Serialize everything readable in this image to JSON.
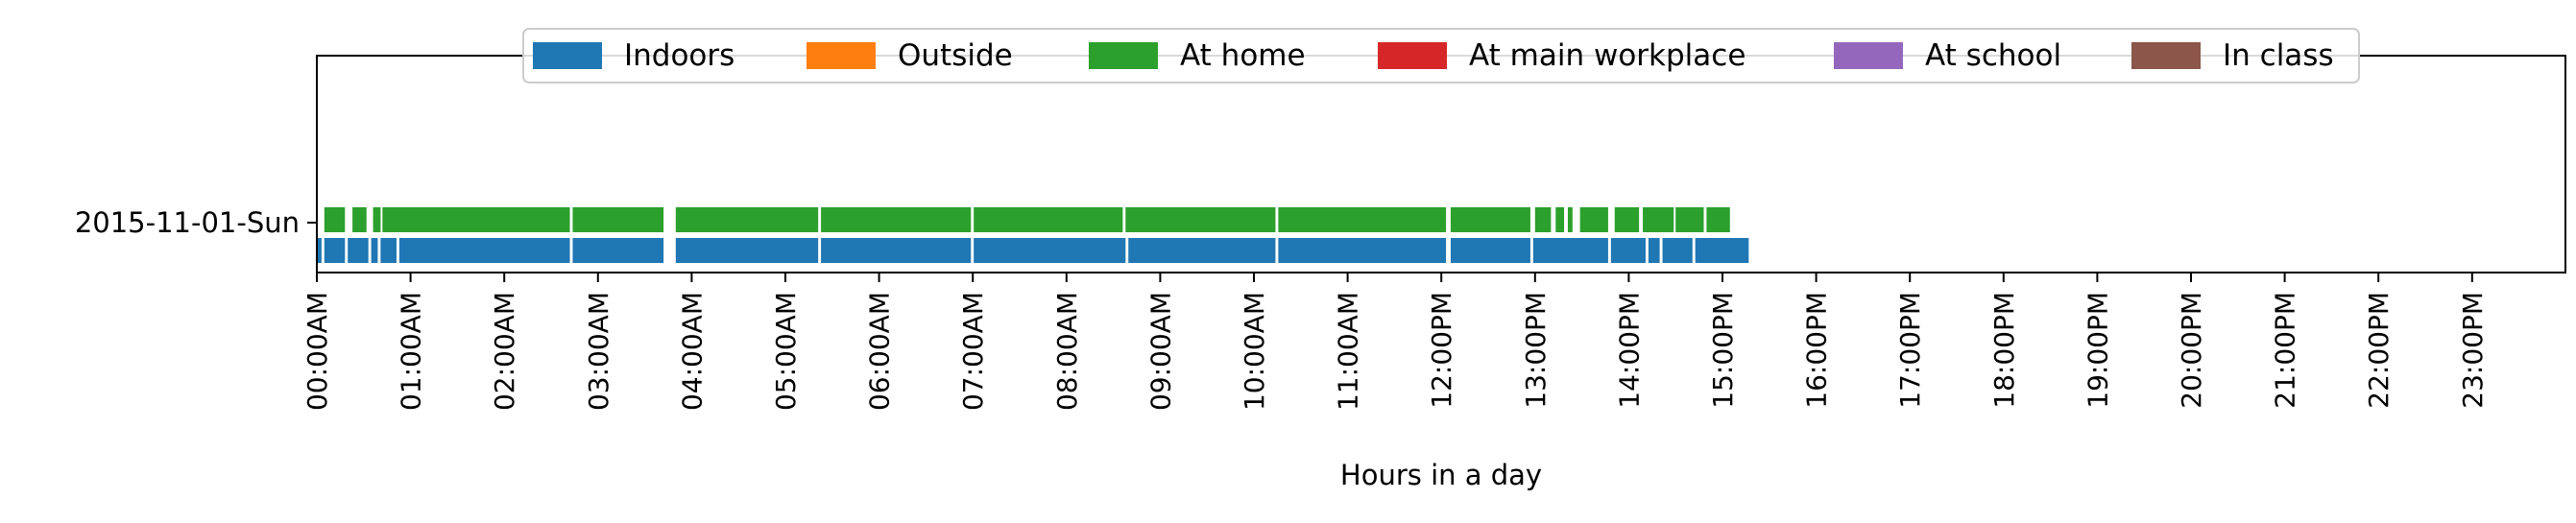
{
  "chart_data": {
    "type": "bar",
    "subtype": "broken-horizontal-timeline",
    "title": "",
    "xlabel": "Hours in a day",
    "ylabel": "",
    "xlim_hours": [
      0,
      24
    ],
    "x_ticks": [
      "00:00AM",
      "01:00AM",
      "02:00AM",
      "03:00AM",
      "04:00AM",
      "05:00AM",
      "06:00AM",
      "07:00AM",
      "08:00AM",
      "09:00AM",
      "10:00AM",
      "11:00AM",
      "12:00PM",
      "13:00PM",
      "14:00PM",
      "15:00PM",
      "16:00PM",
      "17:00PM",
      "18:00PM",
      "19:00PM",
      "20:00PM",
      "21:00PM",
      "22:00PM",
      "23:00PM"
    ],
    "categories": [
      "2015-11-01-Sun"
    ],
    "grid": false,
    "legend_position": "top-center",
    "legend": [
      {
        "name": "Indoors",
        "color": "#1f77b4"
      },
      {
        "name": "Outside",
        "color": "#ff7f0e"
      },
      {
        "name": "At home",
        "color": "#2ca02c"
      },
      {
        "name": "At main workplace",
        "color": "#d62728"
      },
      {
        "name": "At school",
        "color": "#9467bd"
      },
      {
        "name": "In class",
        "color": "#8c564b"
      }
    ],
    "series": [
      {
        "name": "Indoors",
        "color": "#1f77b4",
        "intervals_hours": [
          [
            0.0,
            0.05
          ],
          [
            0.08,
            0.3
          ],
          [
            0.33,
            0.55
          ],
          [
            0.58,
            0.65
          ],
          [
            0.68,
            0.85
          ],
          [
            0.88,
            2.7
          ],
          [
            2.73,
            3.7
          ],
          [
            3.83,
            5.35
          ],
          [
            5.38,
            6.98
          ],
          [
            7.01,
            8.63
          ],
          [
            8.66,
            10.23
          ],
          [
            10.26,
            12.05
          ],
          [
            12.1,
            12.95
          ],
          [
            12.98,
            13.78
          ],
          [
            13.81,
            14.18
          ],
          [
            14.21,
            14.33
          ],
          [
            14.36,
            14.68
          ],
          [
            14.71,
            15.28
          ]
        ]
      },
      {
        "name": "At home",
        "color": "#2ca02c",
        "intervals_hours": [
          [
            0.08,
            0.3
          ],
          [
            0.38,
            0.53
          ],
          [
            0.6,
            0.68
          ],
          [
            0.7,
            2.7
          ],
          [
            2.73,
            3.7
          ],
          [
            3.83,
            5.35
          ],
          [
            5.38,
            6.98
          ],
          [
            7.01,
            8.6
          ],
          [
            8.63,
            10.23
          ],
          [
            10.26,
            12.05
          ],
          [
            12.1,
            12.95
          ],
          [
            13.0,
            13.17
          ],
          [
            13.22,
            13.31
          ],
          [
            13.35,
            13.4
          ],
          [
            13.48,
            13.78
          ],
          [
            13.85,
            14.11
          ],
          [
            14.15,
            14.48
          ],
          [
            14.5,
            14.8
          ],
          [
            14.83,
            15.08
          ]
        ]
      }
    ]
  }
}
